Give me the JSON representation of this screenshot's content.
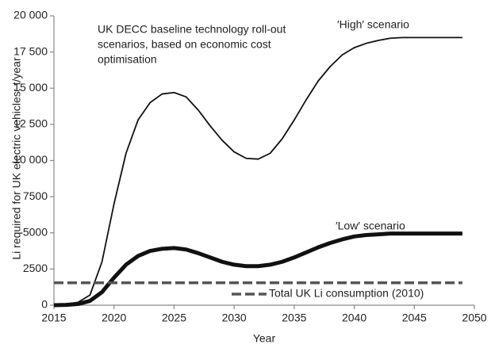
{
  "chart_data": {
    "type": "line",
    "x_label": "Year",
    "y_label": "Li required for UK electric vehicles: t/year",
    "note": [
      "UK DECC baseline technology roll-out",
      "scenarios, based on economic cost",
      "optimisation"
    ],
    "xlim": [
      2015,
      2050
    ],
    "xticks": [
      2015,
      2020,
      2025,
      2030,
      2035,
      2040,
      2045,
      2050
    ],
    "ylim": [
      0,
      20000
    ],
    "yticks": [
      0,
      2500,
      5000,
      7500,
      {
        "value": 10000,
        "label": "10 000"
      },
      {
        "value": 12500,
        "label": "12 500"
      },
      {
        "value": 15000,
        "label": "15 000"
      },
      {
        "value": 17500,
        "label": "17 500"
      },
      {
        "value": 20000,
        "label": "20 000"
      }
    ],
    "series": [
      {
        "name": "′High′ scenario",
        "color": "#111111",
        "linewidth": 1.8,
        "dashed": false,
        "x": [
          2015,
          2016,
          2017,
          2018,
          2019,
          2020,
          2021,
          2022,
          2023,
          2024,
          2025,
          2026,
          2027,
          2028,
          2029,
          2030,
          2031,
          2032,
          2033,
          2034,
          2035,
          2036,
          2037,
          2038,
          2039,
          2040,
          2041,
          2042,
          2043,
          2044,
          2045,
          2046,
          2047,
          2048,
          2049
        ],
        "values": [
          50,
          80,
          200,
          700,
          3000,
          7000,
          10500,
          12800,
          14000,
          14600,
          14700,
          14400,
          13500,
          12400,
          11400,
          10600,
          10150,
          10100,
          10500,
          11500,
          12800,
          14200,
          15500,
          16500,
          17300,
          17800,
          18100,
          18300,
          18450,
          18500,
          18500,
          18500,
          18500,
          18500,
          18500
        ]
      },
      {
        "name": "′Low′ scenario",
        "color": "#111111",
        "linewidth": 5,
        "dashed": false,
        "x": [
          2015,
          2016,
          2017,
          2018,
          2019,
          2020,
          2021,
          2022,
          2023,
          2024,
          2025,
          2026,
          2027,
          2028,
          2029,
          2030,
          2031,
          2032,
          2033,
          2034,
          2035,
          2036,
          2037,
          2038,
          2039,
          2040,
          2041,
          2042,
          2043,
          2044,
          2045,
          2046,
          2047,
          2048,
          2049
        ],
        "values": [
          0,
          20,
          80,
          300,
          900,
          1900,
          2800,
          3400,
          3750,
          3900,
          3950,
          3850,
          3600,
          3300,
          3000,
          2800,
          2700,
          2700,
          2800,
          3000,
          3300,
          3650,
          4000,
          4300,
          4550,
          4750,
          4850,
          4900,
          4950,
          4950,
          4950,
          4950,
          4950,
          4950,
          4950
        ]
      },
      {
        "name": "Total UK Li consumption (2010)",
        "color": "#555555",
        "linewidth": 3.5,
        "dashed": true,
        "x": [
          2015,
          2049
        ],
        "values": [
          1550,
          1550
        ]
      }
    ]
  }
}
